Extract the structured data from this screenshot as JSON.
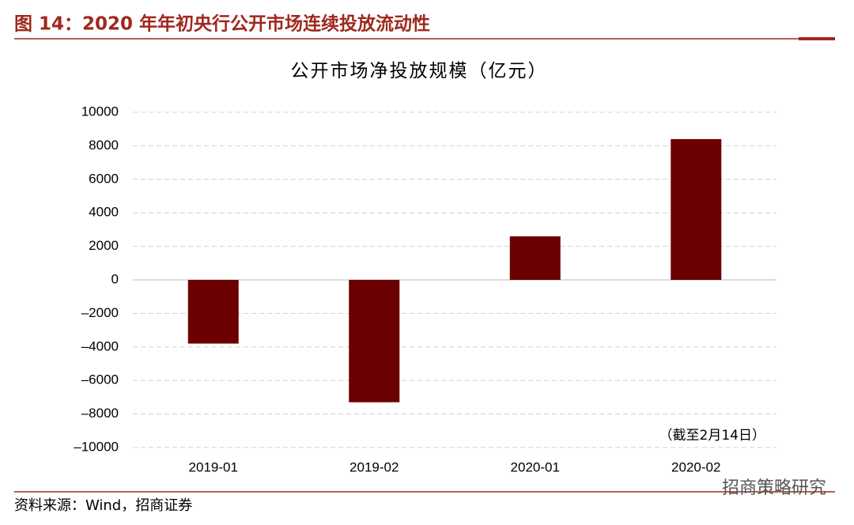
{
  "header": {
    "title": "图 14：2020 年年初央行公开市场连续投放流动性"
  },
  "chart_data": {
    "type": "bar",
    "title": "公开市场净投放规模（亿元）",
    "categories": [
      "2019-01",
      "2019-02",
      "2020-01",
      "2020-02"
    ],
    "values": [
      -3800,
      -7300,
      2600,
      8400
    ],
    "color": "#6b0000",
    "ylim": [
      -10000,
      10000
    ],
    "yticks": [
      {
        "value": -10000,
        "label": "–10000"
      },
      {
        "value": -8000,
        "label": "–8000"
      },
      {
        "value": -6000,
        "label": "–6000"
      },
      {
        "value": -4000,
        "label": "–4000"
      },
      {
        "value": -2000,
        "label": "–2000"
      },
      0,
      2000,
      4000,
      6000,
      8000,
      10000
    ],
    "grid": true,
    "annotation": "（截至2月14日）"
  },
  "footer": {
    "source": "资料来源：Wind，招商证券",
    "watermark": "招商策略研究"
  }
}
